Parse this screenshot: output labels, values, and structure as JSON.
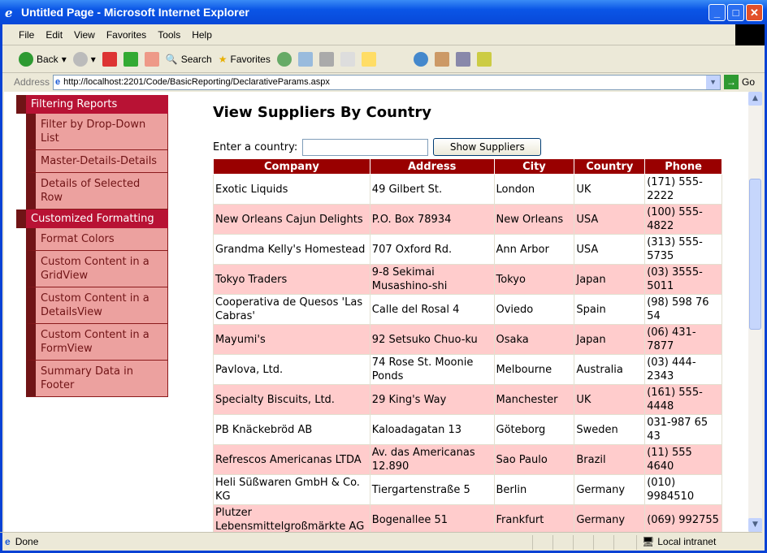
{
  "window": {
    "title": "Untitled Page - Microsoft Internet Explorer"
  },
  "menu": [
    "File",
    "Edit",
    "View",
    "Favorites",
    "Tools",
    "Help"
  ],
  "toolbar": {
    "back": "Back",
    "search": "Search",
    "favorites": "Favorites"
  },
  "address": {
    "label": "Address",
    "url": "http://localhost:2201/Code/BasicReporting/DeclarativeParams.aspx",
    "go": "Go"
  },
  "sidebar": [
    {
      "header": "Filtering Reports",
      "items": [
        "Filter by Drop-Down List",
        "Master-Details-Details",
        "Details of Selected Row"
      ]
    },
    {
      "header": "Customized Formatting",
      "items": [
        "Format Colors",
        "Custom Content in a GridView",
        "Custom Content in a DetailsView",
        "Custom Content in a FormView",
        "Summary Data in Footer"
      ]
    }
  ],
  "main": {
    "title": "View Suppliers By Country",
    "country_label": "Enter a country:",
    "country_value": "",
    "button": "Show Suppliers"
  },
  "table": {
    "columns": [
      "Company",
      "Address",
      "City",
      "Country",
      "Phone"
    ],
    "rows": [
      [
        "Exotic Liquids",
        "49 Gilbert St.",
        "London",
        "UK",
        "(171) 555-2222"
      ],
      [
        "New Orleans Cajun Delights",
        "P.O. Box 78934",
        "New Orleans",
        "USA",
        "(100) 555-4822"
      ],
      [
        "Grandma Kelly's Homestead",
        "707 Oxford Rd.",
        "Ann Arbor",
        "USA",
        "(313) 555-5735"
      ],
      [
        "Tokyo Traders",
        "9-8 Sekimai Musashino-shi",
        "Tokyo",
        "Japan",
        "(03) 3555-5011"
      ],
      [
        "Cooperativa de Quesos 'Las Cabras'",
        "Calle del Rosal 4",
        "Oviedo",
        "Spain",
        "(98) 598 76 54"
      ],
      [
        "Mayumi's",
        "92 Setsuko Chuo-ku",
        "Osaka",
        "Japan",
        "(06) 431-7877"
      ],
      [
        "Pavlova, Ltd.",
        "74 Rose St. Moonie Ponds",
        "Melbourne",
        "Australia",
        "(03) 444-2343"
      ],
      [
        "Specialty Biscuits, Ltd.",
        "29 King's Way",
        "Manchester",
        "UK",
        "(161) 555-4448"
      ],
      [
        "PB Knäckebröd AB",
        "Kaloadagatan 13",
        "Göteborg",
        "Sweden",
        "031-987 65 43"
      ],
      [
        "Refrescos Americanas LTDA",
        "Av. das Americanas 12.890",
        "Sao Paulo",
        "Brazil",
        "(11) 555 4640"
      ],
      [
        "Heli Süßwaren GmbH & Co. KG",
        "Tiergartenstraße 5",
        "Berlin",
        "Germany",
        "(010) 9984510"
      ],
      [
        "Plutzer Lebensmittelgroßmärkte AG",
        "Bogenallee 51",
        "Frankfurt",
        "Germany",
        "(069) 992755"
      ]
    ]
  },
  "status": {
    "text": "Done",
    "zone": "Local intranet"
  }
}
